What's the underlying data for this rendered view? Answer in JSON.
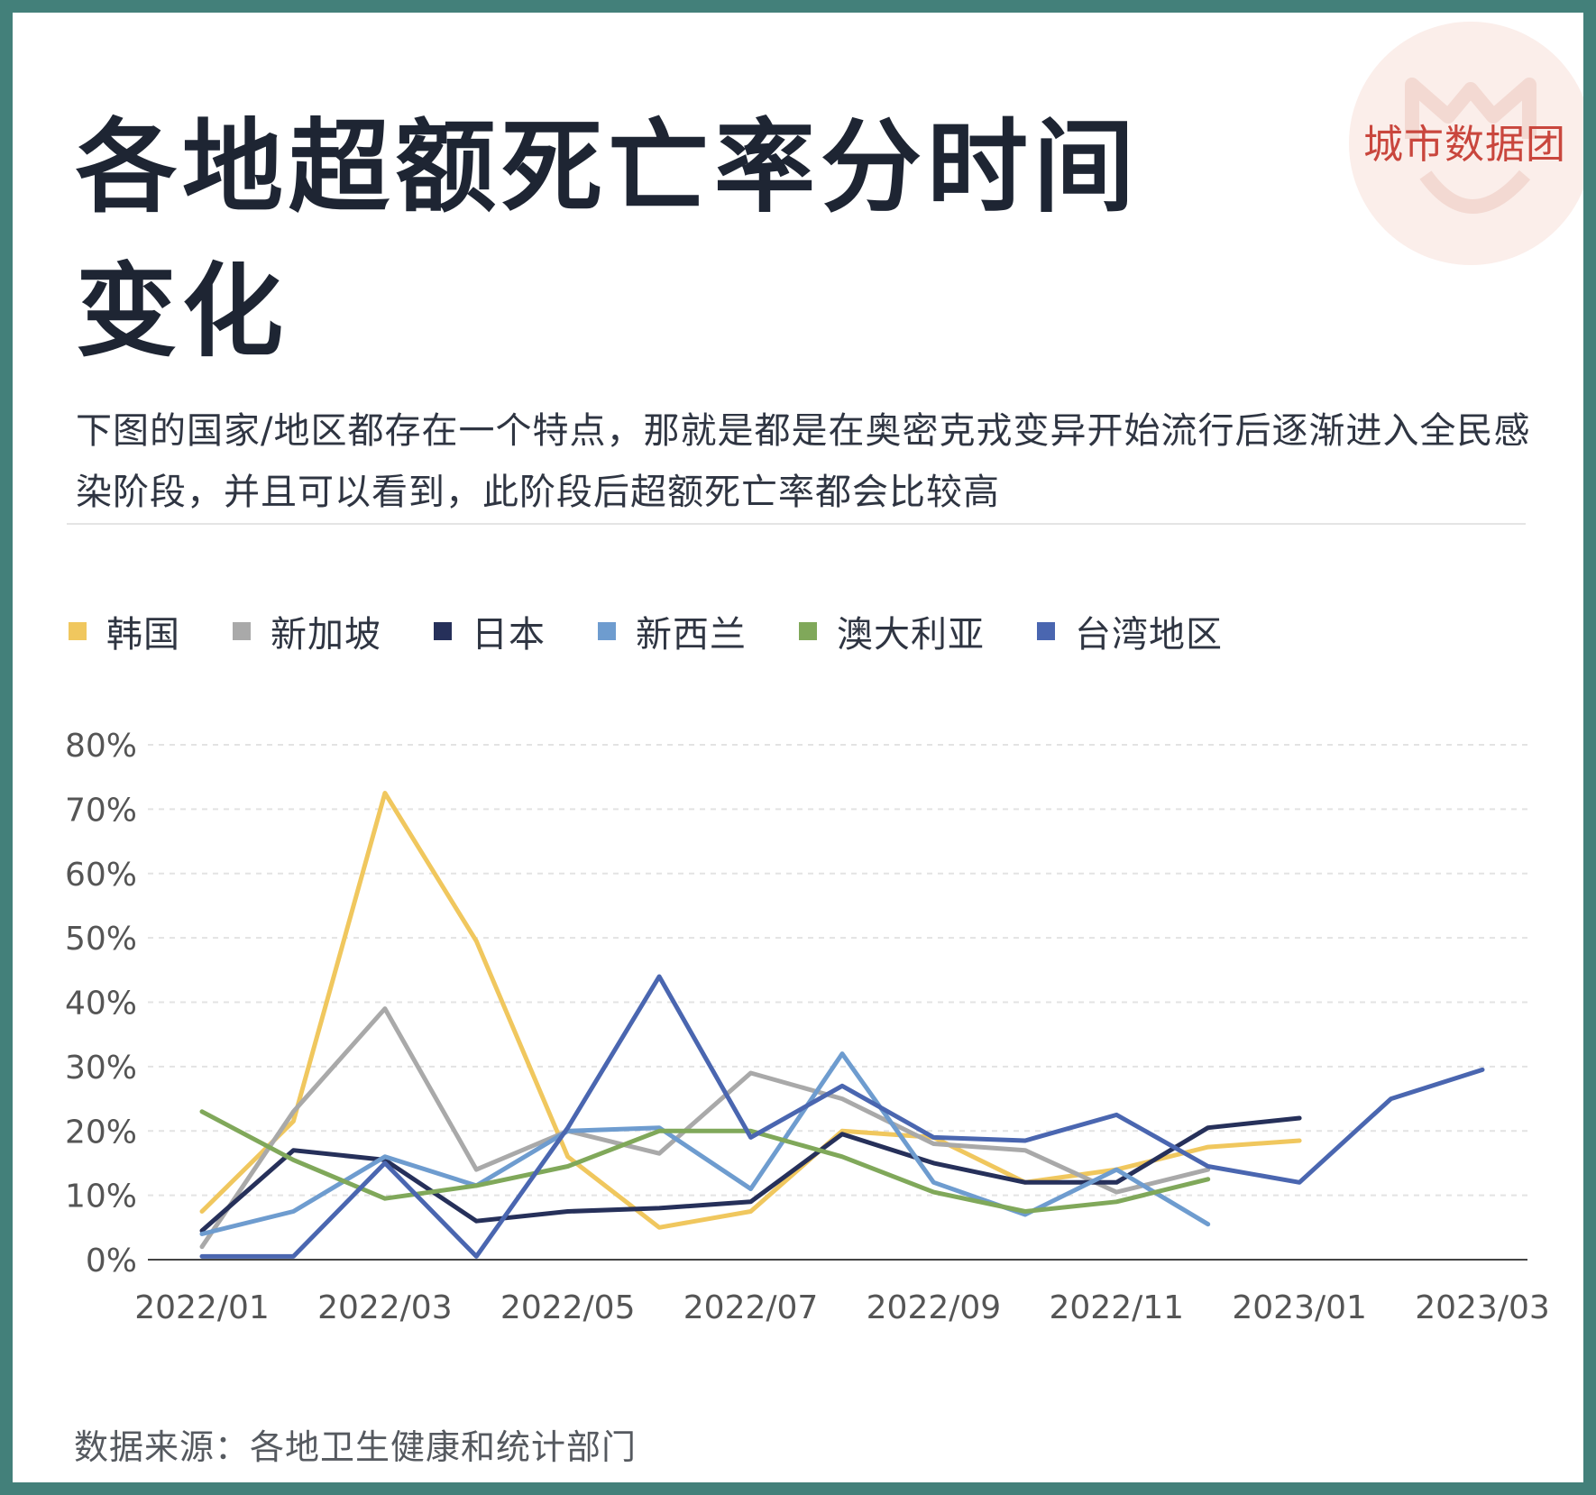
{
  "title": "各地超额死亡率分时间变化",
  "subtitle": "下图的国家/地区都存在一个特点，那就是都是在奥密克戎变异开始流行后逐渐进入全民感染阶段，并且可以看到，此阶段后超额死亡率都会比较高",
  "logo_text": "城市数据团",
  "source": "数据来源：各地卫生健康和统计部门",
  "chart_data": {
    "type": "line",
    "x": [
      "2022/01",
      "2022/02",
      "2022/03",
      "2022/04",
      "2022/05",
      "2022/06",
      "2022/07",
      "2022/08",
      "2022/09",
      "2022/10",
      "2022/11",
      "2022/12",
      "2023/01",
      "2023/02",
      "2023/03"
    ],
    "x_tick_labels": [
      "2022/01",
      "2022/03",
      "2022/05",
      "2022/07",
      "2022/09",
      "2022/11",
      "2023/01",
      "2023/03"
    ],
    "y_tick_labels": [
      "0%",
      "10%",
      "20%",
      "30%",
      "40%",
      "50%",
      "60%",
      "70%",
      "80%"
    ],
    "ylim": [
      0,
      80
    ],
    "y_unit": "%",
    "grid": true,
    "legend_position": "top-left",
    "series": [
      {
        "name": "韩国",
        "color": "#f0c75e",
        "values": [
          7.5,
          21.5,
          72.5,
          49.5,
          16,
          5,
          7.5,
          20,
          19,
          12,
          14,
          17.5,
          18.5,
          null,
          null
        ]
      },
      {
        "name": "新加坡",
        "color": "#a9a9a9",
        "values": [
          2,
          23,
          39,
          14,
          20,
          16.5,
          29,
          25,
          18,
          17,
          10.5,
          14,
          null,
          null,
          null
        ]
      },
      {
        "name": "日本",
        "color": "#26305a",
        "values": [
          4.5,
          17,
          15.5,
          6,
          7.5,
          8,
          9,
          19.5,
          15,
          12,
          12,
          20.5,
          22,
          null,
          null
        ]
      },
      {
        "name": "新西兰",
        "color": "#6e9ccf",
        "values": [
          4,
          7.5,
          16,
          11.5,
          20,
          20.5,
          11,
          32,
          12,
          7,
          14,
          5.5,
          null,
          null,
          null
        ]
      },
      {
        "name": "澳大利亚",
        "color": "#80a85a",
        "values": [
          23,
          15.5,
          9.5,
          11.5,
          14.5,
          20,
          20,
          16,
          10.5,
          7.5,
          9,
          12.5,
          null,
          null,
          null
        ]
      },
      {
        "name": "台湾地区",
        "color": "#4a66b0",
        "values": [
          0.5,
          0.5,
          15,
          0.5,
          20.5,
          44,
          19,
          27,
          19,
          18.5,
          22.5,
          14.5,
          12,
          25,
          29.5
        ]
      }
    ]
  }
}
